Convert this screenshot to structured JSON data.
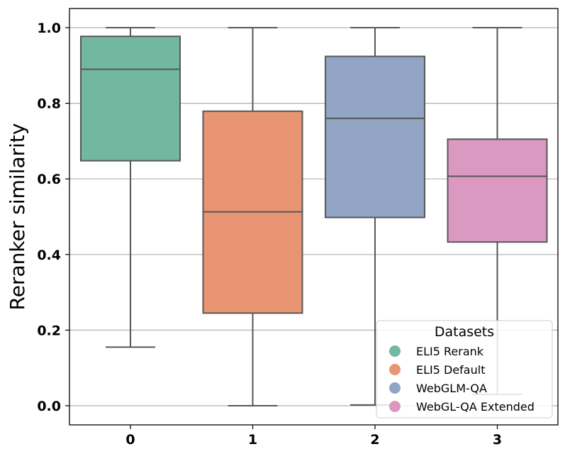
{
  "chart_data": {
    "type": "box",
    "title": "",
    "xlabel": "",
    "ylabel": "Reranker similarity",
    "ylim": [
      -0.05,
      1.05
    ],
    "yticks": [
      0.0,
      0.2,
      0.4,
      0.6,
      0.8,
      1.0
    ],
    "ytick_labels": [
      "0.0",
      "0.2",
      "0.4",
      "0.6",
      "0.8",
      "1.0"
    ],
    "categories": [
      "0",
      "1",
      "2",
      "3"
    ],
    "grid": "horizontal",
    "series": [
      {
        "name": "ELI5 Rerank",
        "color": "#72b8a0",
        "whisker_low": 0.155,
        "q1": 0.648,
        "median": 0.89,
        "q3": 0.977,
        "whisker_high": 1.0
      },
      {
        "name": "ELI5 Default",
        "color": "#e99574",
        "whisker_low": 0.0,
        "q1": 0.245,
        "median": 0.513,
        "q3": 0.779,
        "whisker_high": 1.0
      },
      {
        "name": "WebGLM-QA",
        "color": "#93a5c5",
        "whisker_low": 0.002,
        "q1": 0.498,
        "median": 0.76,
        "q3": 0.924,
        "whisker_high": 1.0
      },
      {
        "name": "WebGL-QA Extended",
        "color": "#db98c1",
        "whisker_low": 0.03,
        "q1": 0.433,
        "median": 0.607,
        "q3": 0.705,
        "whisker_high": 1.0
      }
    ],
    "legend": {
      "title": "Datasets",
      "position": "bottom-right",
      "entries": [
        "ELI5 Rerank",
        "ELI5 Default",
        "WebGLM-QA",
        "WebGL-QA Extended"
      ]
    }
  }
}
